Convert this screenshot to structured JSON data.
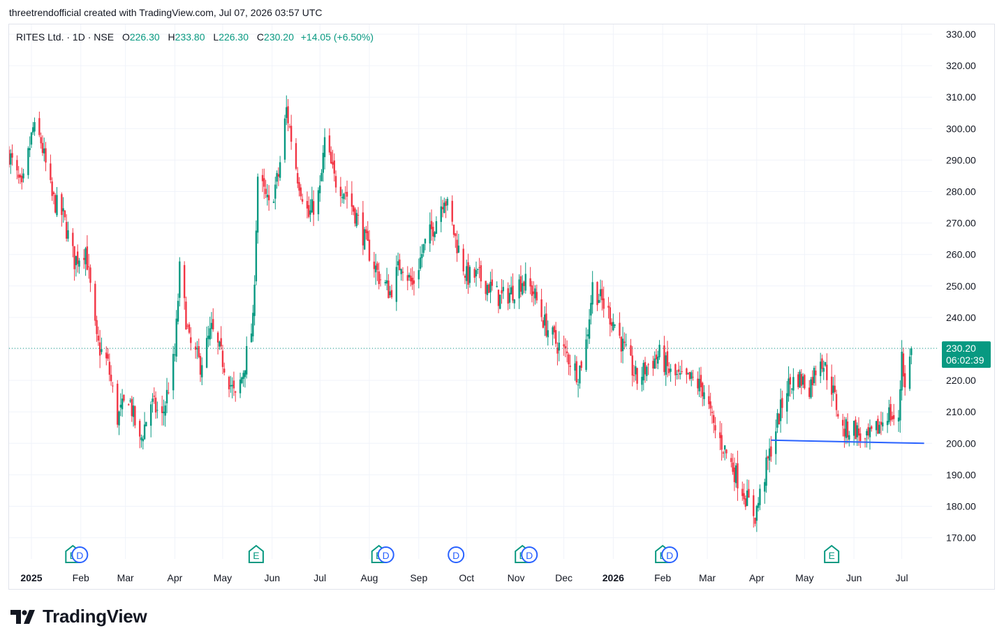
{
  "header": {
    "credit": "threetrendofficial created with TradingView.com, Jul 07, 2026 03:57 UTC"
  },
  "legend": {
    "symbol": "RITES Ltd. · 1D · NSE",
    "open_label": "O",
    "open": "226.30",
    "high_label": "H",
    "high": "233.80",
    "low_label": "L",
    "low": "226.30",
    "close_label": "C",
    "close": "230.20",
    "change": "+14.05 (+6.50%)"
  },
  "price_tag": {
    "price": "230.20",
    "countdown": "06:02:39"
  },
  "brand": {
    "name": "TradingView",
    "logo": "tradingview-logo-icon"
  },
  "colors": {
    "up": "#089981",
    "down": "#f23645",
    "trendline": "#2962ff",
    "grid": "#f0f3fa",
    "text": "#131722"
  },
  "chart_data": {
    "type": "candlestick",
    "title": "RITES Ltd. · 1D · NSE",
    "ylim": [
      165,
      333
    ],
    "y_ticks": [
      170,
      180,
      190,
      200,
      210,
      220,
      230,
      240,
      250,
      260,
      270,
      280,
      290,
      300,
      310,
      320,
      330
    ],
    "y_tick_labels": [
      "170.00",
      "180.00",
      "190.00",
      "200.00",
      "210.00",
      "220.00",
      "230.00",
      "240.00",
      "250.00",
      "260.00",
      "270.00",
      "280.00",
      "290.00",
      "300.00",
      "310.00",
      "320.00",
      "330.00"
    ],
    "x_range": [
      "2024-12-18",
      "2026-07-20"
    ],
    "x_ticks": [
      {
        "date": "2025-01-01",
        "label": "2025",
        "bold": true
      },
      {
        "date": "2025-02-01",
        "label": "Feb"
      },
      {
        "date": "2025-03-01",
        "label": "Mar"
      },
      {
        "date": "2025-04-01",
        "label": "Apr"
      },
      {
        "date": "2025-05-01",
        "label": "May"
      },
      {
        "date": "2025-06-01",
        "label": "Jun"
      },
      {
        "date": "2025-07-01",
        "label": "Jul"
      },
      {
        "date": "2025-08-01",
        "label": "Aug"
      },
      {
        "date": "2025-09-01",
        "label": "Sep"
      },
      {
        "date": "2025-10-01",
        "label": "Oct"
      },
      {
        "date": "2025-11-01",
        "label": "Nov"
      },
      {
        "date": "2025-12-01",
        "label": "Dec"
      },
      {
        "date": "2026-01-01",
        "label": "2026",
        "bold": true
      },
      {
        "date": "2026-02-01",
        "label": "Feb"
      },
      {
        "date": "2026-03-01",
        "label": "Mar"
      },
      {
        "date": "2026-04-01",
        "label": "Apr"
      },
      {
        "date": "2026-05-01",
        "label": "May"
      },
      {
        "date": "2026-06-01",
        "label": "Jun"
      },
      {
        "date": "2026-07-01",
        "label": "Jul"
      }
    ],
    "price_path": [
      [
        "2024-12-18",
        292
      ],
      [
        "2024-12-26",
        280
      ],
      [
        "2025-01-02",
        300
      ],
      [
        "2025-01-07",
        296
      ],
      [
        "2025-01-14",
        278
      ],
      [
        "2025-01-21",
        272
      ],
      [
        "2025-01-28",
        258
      ],
      [
        "2025-02-04",
        262
      ],
      [
        "2025-02-11",
        232
      ],
      [
        "2025-02-18",
        225
      ],
      [
        "2025-02-24",
        208
      ],
      [
        "2025-03-03",
        215
      ],
      [
        "2025-03-10",
        200
      ],
      [
        "2025-03-17",
        213
      ],
      [
        "2025-03-24",
        208
      ],
      [
        "2025-04-01",
        228
      ],
      [
        "2025-04-04",
        255
      ],
      [
        "2025-04-10",
        232
      ],
      [
        "2025-04-17",
        225
      ],
      [
        "2025-04-24",
        236
      ],
      [
        "2025-05-02",
        225
      ],
      [
        "2025-05-09",
        214
      ],
      [
        "2025-05-13",
        221
      ],
      [
        "2025-05-20",
        238
      ],
      [
        "2025-05-23",
        285
      ],
      [
        "2025-05-30",
        275
      ],
      [
        "2025-06-05",
        285
      ],
      [
        "2025-06-10",
        306
      ],
      [
        "2025-06-17",
        285
      ],
      [
        "2025-06-24",
        272
      ],
      [
        "2025-07-01",
        280
      ],
      [
        "2025-07-04",
        296
      ],
      [
        "2025-07-10",
        284
      ],
      [
        "2025-07-17",
        280
      ],
      [
        "2025-07-24",
        272
      ],
      [
        "2025-07-31",
        262
      ],
      [
        "2025-08-07",
        253
      ],
      [
        "2025-08-14",
        248
      ],
      [
        "2025-08-21",
        258
      ],
      [
        "2025-08-28",
        250
      ],
      [
        "2025-09-04",
        262
      ],
      [
        "2025-09-11",
        270
      ],
      [
        "2025-09-17",
        279
      ],
      [
        "2025-09-24",
        265
      ],
      [
        "2025-10-01",
        253
      ],
      [
        "2025-10-08",
        253
      ],
      [
        "2025-10-15",
        250
      ],
      [
        "2025-10-22",
        246
      ],
      [
        "2025-10-29",
        248
      ],
      [
        "2025-11-05",
        252
      ],
      [
        "2025-11-12",
        248
      ],
      [
        "2025-11-19",
        238
      ],
      [
        "2025-11-26",
        232
      ],
      [
        "2025-12-03",
        228
      ],
      [
        "2025-12-10",
        222
      ],
      [
        "2025-12-15",
        232
      ],
      [
        "2025-12-19",
        250
      ],
      [
        "2025-12-26",
        244
      ],
      [
        "2026-01-02",
        238
      ],
      [
        "2026-01-09",
        228
      ],
      [
        "2026-01-16",
        220
      ],
      [
        "2026-01-23",
        225
      ],
      [
        "2026-01-30",
        228
      ],
      [
        "2026-02-06",
        222
      ],
      [
        "2026-02-13",
        220
      ],
      [
        "2026-02-20",
        220
      ],
      [
        "2026-02-27",
        217
      ],
      [
        "2026-03-05",
        205
      ],
      [
        "2026-03-12",
        198
      ],
      [
        "2026-03-19",
        190
      ],
      [
        "2026-03-26",
        182
      ],
      [
        "2026-03-31",
        177
      ],
      [
        "2026-04-06",
        190
      ],
      [
        "2026-04-13",
        205
      ],
      [
        "2026-04-20",
        218
      ],
      [
        "2026-04-27",
        221
      ],
      [
        "2026-05-04",
        218
      ],
      [
        "2026-05-11",
        228
      ],
      [
        "2026-05-18",
        218
      ],
      [
        "2026-05-25",
        204
      ],
      [
        "2026-06-01",
        205
      ],
      [
        "2026-06-08",
        200
      ],
      [
        "2026-06-15",
        204
      ],
      [
        "2026-06-22",
        210
      ],
      [
        "2026-06-29",
        206
      ],
      [
        "2026-07-01",
        230
      ],
      [
        "2026-07-03",
        217
      ],
      [
        "2026-07-07",
        230
      ]
    ],
    "last_price": 230.2,
    "trendline": {
      "start": [
        "2026-04-10",
        201
      ],
      "end": [
        "2026-07-15",
        200
      ]
    },
    "event_markers": [
      {
        "date": "2025-01-27",
        "label": "E",
        "type": "earnings"
      },
      {
        "date": "2025-01-27",
        "label": "D",
        "type": "dividend"
      },
      {
        "date": "2025-05-22",
        "label": "E",
        "type": "earnings"
      },
      {
        "date": "2025-08-07",
        "label": "E",
        "type": "earnings"
      },
      {
        "date": "2025-08-07",
        "label": "D",
        "type": "dividend"
      },
      {
        "date": "2025-09-20",
        "label": "D",
        "type": "dividend"
      },
      {
        "date": "2025-11-05",
        "label": "E",
        "type": "earnings"
      },
      {
        "date": "2025-11-05",
        "label": "D",
        "type": "dividend"
      },
      {
        "date": "2026-02-01",
        "label": "E",
        "type": "earnings"
      },
      {
        "date": "2026-02-01",
        "label": "D",
        "type": "dividend"
      },
      {
        "date": "2026-05-18",
        "label": "E",
        "type": "earnings"
      }
    ]
  }
}
